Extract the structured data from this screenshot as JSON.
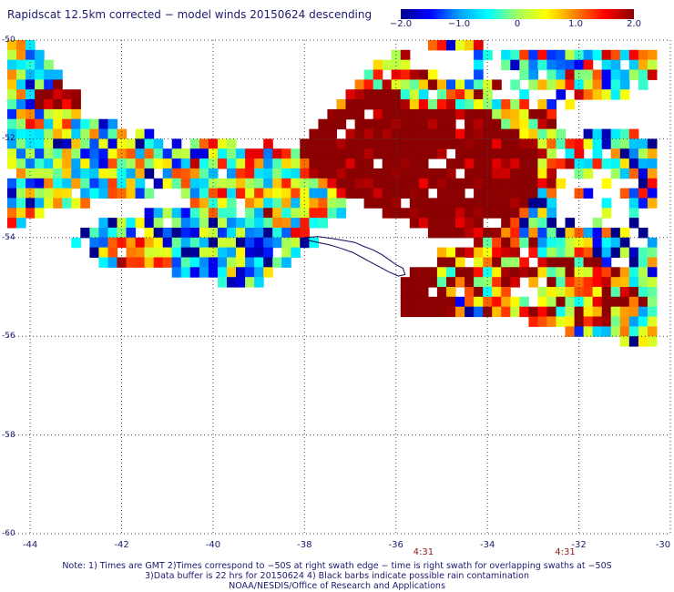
{
  "title": "Rapidscat 12.5km corrected − model winds 20150624 descending",
  "colorbar": {
    "labels": [
      "−2.0",
      "−1.0",
      "0",
      "1.0",
      "2.0"
    ],
    "values": [
      -2.0,
      -1.0,
      0,
      1.0,
      2.0
    ],
    "stops": [
      "#00008b",
      "#0000ff",
      "#00a0ff",
      "#00ffff",
      "#a0ff60",
      "#ffff00",
      "#ff8000",
      "#ff0000",
      "#8b0000"
    ]
  },
  "map": {
    "lon_range": [
      -44.5,
      -30
    ],
    "lat_range": [
      -60,
      -50
    ],
    "lat_labels": [
      "-50",
      "-52",
      "-54",
      "-56",
      "-58",
      "-60"
    ],
    "lat_values": [
      -50,
      -52,
      -54,
      -56,
      -58,
      -60
    ],
    "lon_labels": [
      "-44",
      "-42",
      "-40",
      "-38",
      "-36",
      "-34",
      "-32",
      "-30"
    ],
    "lon_values": [
      -44,
      -42,
      -40,
      -38,
      -36,
      -34,
      -32,
      -30
    ],
    "coast_color": "#0a0a60",
    "grid_color": "#444444"
  },
  "times": [
    {
      "label": "4:31",
      "lon": -35.4
    },
    {
      "label": "4:31",
      "lon": -32.3
    }
  ],
  "notes": {
    "line1": "Note: 1) Times are GMT 2)Times correspond to −50S at right swath edge − time is right swath for overlapping swaths at −50S",
    "line2": "3)Data buffer is 22 hrs for 20150624 4) Black barbs indicate possible rain contamination",
    "line3": "NOAA/NESDIS/Office of Research and Applications"
  }
}
